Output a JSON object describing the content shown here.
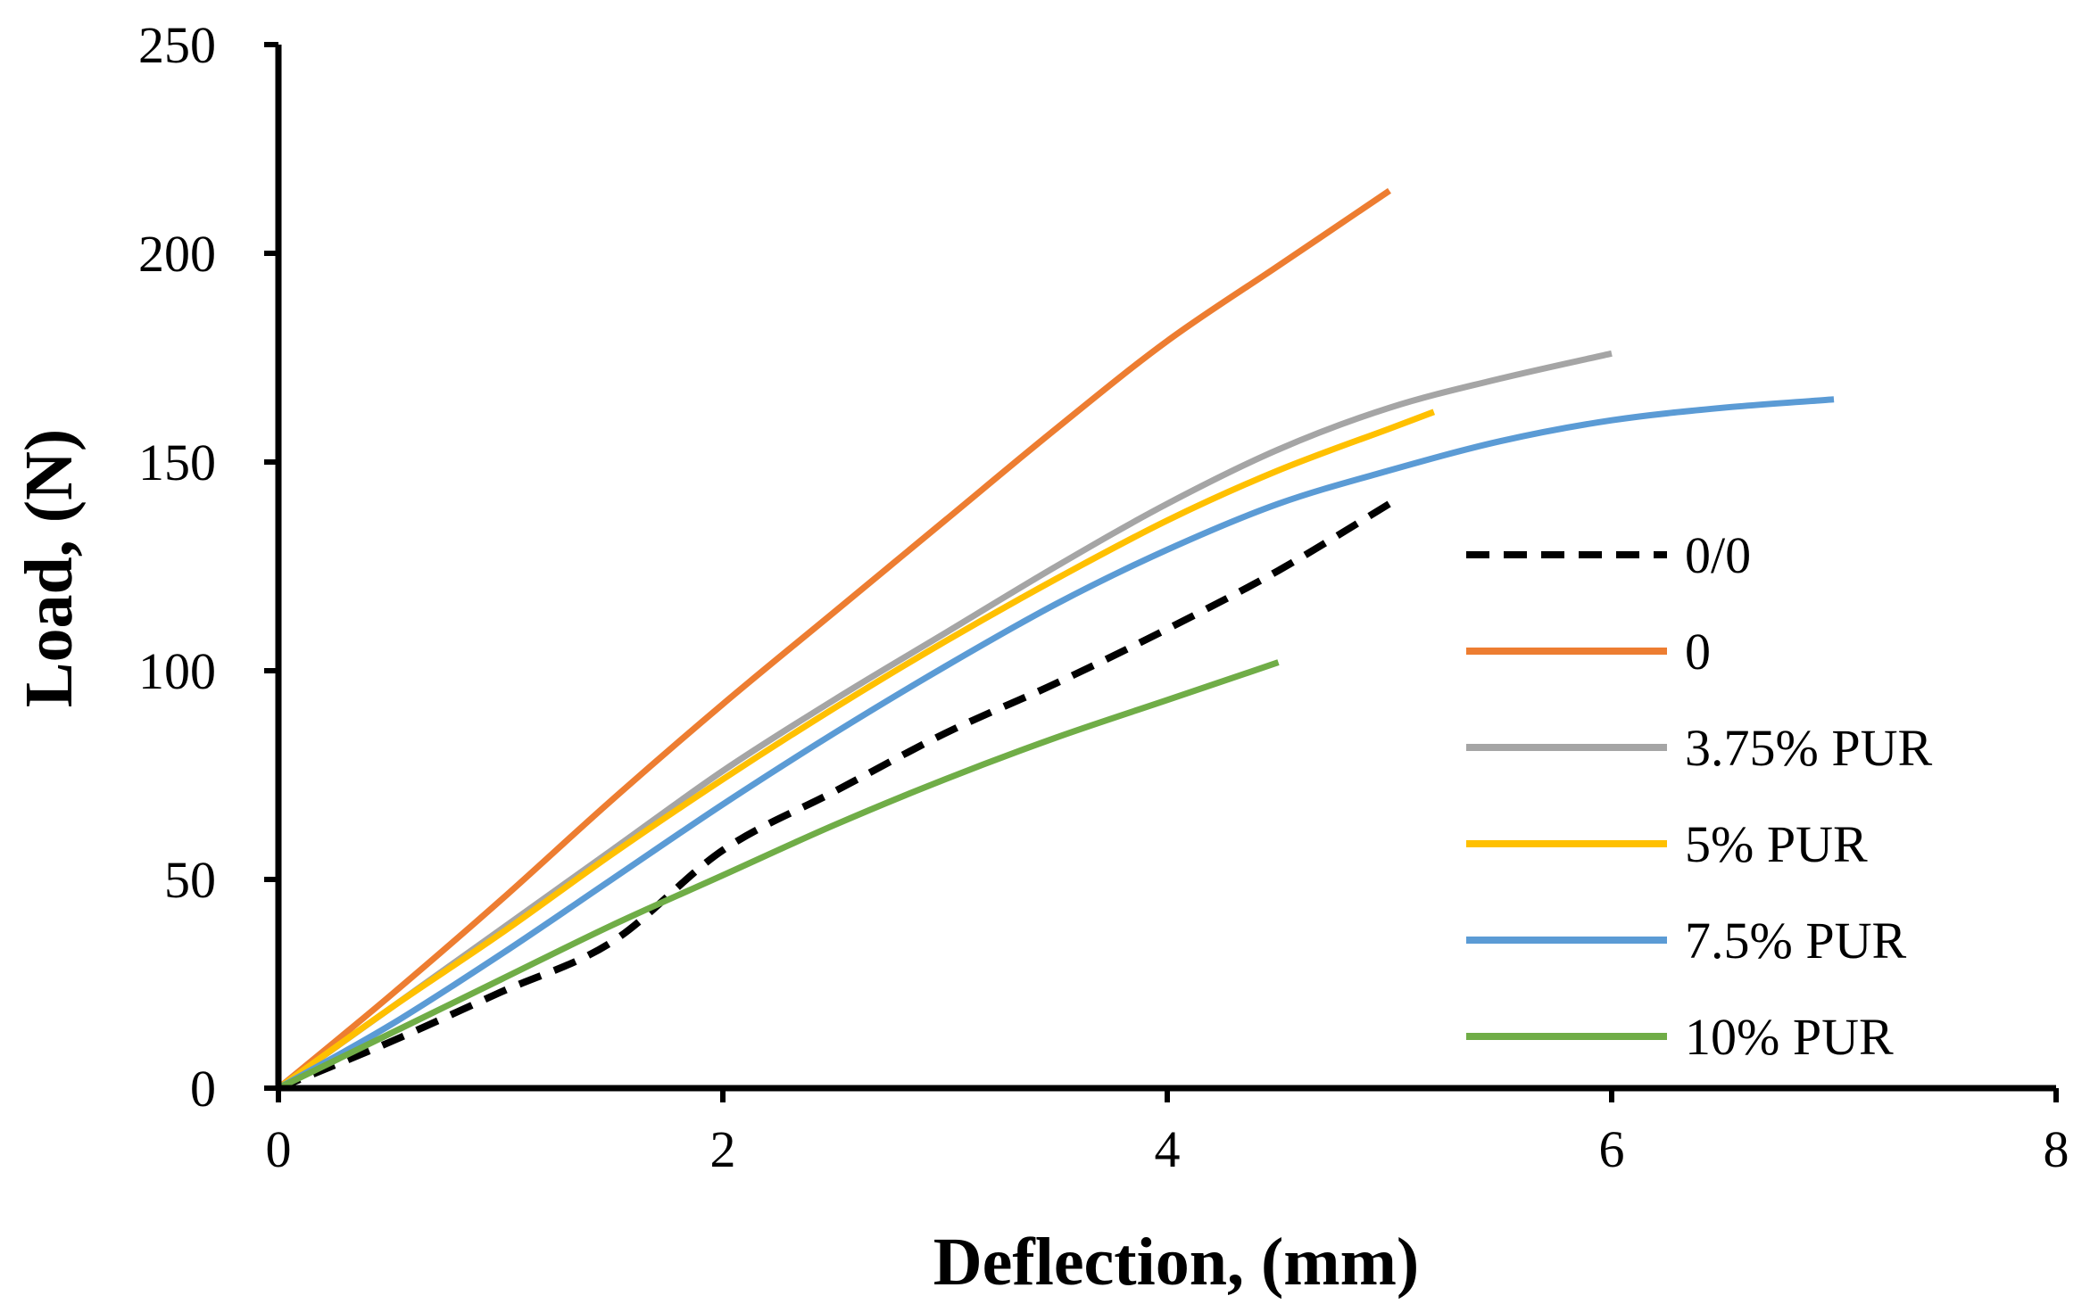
{
  "chart_data": {
    "type": "line",
    "title": "",
    "xlabel": "Deflection, (mm)",
    "ylabel": "Load, (N)",
    "xlim": [
      0,
      8
    ],
    "ylim": [
      0,
      250
    ],
    "xticks": [
      0,
      2,
      4,
      6,
      8
    ],
    "yticks": [
      0,
      50,
      100,
      150,
      200,
      250
    ],
    "grid": false,
    "legend_position": "right",
    "series": [
      {
        "name": "0/0",
        "color": "#000000",
        "dashed": true,
        "x": [
          0,
          0.5,
          1,
          1.5,
          2,
          2.5,
          3,
          3.5,
          4,
          4.5,
          5
        ],
        "y": [
          0,
          11,
          23,
          35,
          57,
          71,
          85,
          97,
          110,
          124,
          140
        ]
      },
      {
        "name": "0",
        "color": "#ED7D31",
        "dashed": false,
        "x": [
          0,
          0.5,
          1,
          1.5,
          2,
          2.5,
          3,
          3.5,
          4,
          4.5,
          5
        ],
        "y": [
          0,
          22,
          45,
          69,
          92,
          114,
          136,
          158,
          179,
          197,
          215
        ]
      },
      {
        "name": "3.75% PUR",
        "color": "#A5A5A5",
        "dashed": false,
        "x": [
          0,
          0.5,
          1,
          1.5,
          2,
          2.5,
          3,
          3.5,
          4,
          4.5,
          5,
          5.5,
          6
        ],
        "y": [
          0,
          19,
          38,
          57,
          76,
          93,
          109,
          125,
          140,
          153,
          163,
          170,
          176
        ]
      },
      {
        "name": "5% PUR",
        "color": "#FFC000",
        "dashed": false,
        "x": [
          0,
          0.5,
          1,
          1.5,
          2,
          2.5,
          3,
          3.5,
          4,
          4.5,
          5,
          5.2
        ],
        "y": [
          0,
          19,
          37,
          56,
          74,
          91,
          107,
          122,
          136,
          148,
          158,
          162
        ]
      },
      {
        "name": "7.5% PUR",
        "color": "#5B9BD5",
        "dashed": false,
        "x": [
          0,
          0.5,
          1,
          1.5,
          2,
          2.5,
          3,
          3.5,
          4,
          4.5,
          5,
          5.5,
          6,
          6.5,
          7
        ],
        "y": [
          0,
          15,
          32,
          50,
          68,
          85,
          101,
          116,
          129,
          140,
          148,
          155,
          160,
          163,
          165
        ]
      },
      {
        "name": "10% PUR",
        "color": "#70AD47",
        "dashed": false,
        "x": [
          0,
          0.5,
          1,
          1.5,
          2,
          2.5,
          3,
          3.5,
          4,
          4.5
        ],
        "y": [
          0,
          13,
          26,
          39,
          51,
          63,
          74,
          84,
          93,
          102
        ]
      }
    ]
  }
}
